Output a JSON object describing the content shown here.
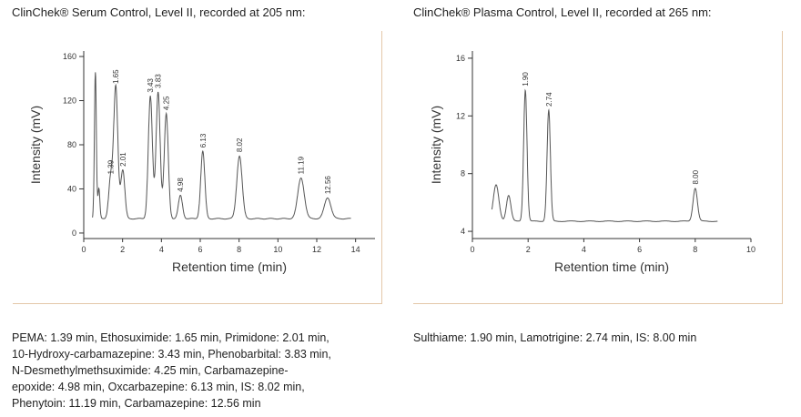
{
  "panels": [
    {
      "title": "ClinChek® Serum Control, Level II, recorded at 205 nm:",
      "caption_lines": [
        "PEMA: 1.39 min, Ethosuximide: 1.65 min, Primidone: 2.01 min,",
        "10-Hydroxy-carbamazepine: 3.43 min, Phenobarbital: 3.83 min,",
        "N-Desmethylmethsuximide: 4.25 min, Carbamazepine-",
        "epoxide: 4.98 min, Oxcarbazepine: 6.13 min, IS: 8.02 min,",
        "Phenytoin: 11.19 min, Carbamazepine: 12.56 min"
      ]
    },
    {
      "title": "ClinChek® Plasma Control, Level II, recorded at 265 nm:",
      "caption_lines": [
        "Sulthiame: 1.90 min, Lamotrigine: 2.74 min, IS: 8.00 min"
      ]
    }
  ],
  "chart_data": [
    {
      "type": "line",
      "xlabel": "Retention time (min)",
      "ylabel": "Intensity (mV)",
      "xlim": [
        0,
        15
      ],
      "ylim": [
        -5,
        165
      ],
      "xticks": [
        0,
        2,
        4,
        6,
        8,
        10,
        12,
        14
      ],
      "yticks": [
        0,
        40,
        80,
        120,
        160
      ],
      "baseline": 13,
      "artifacts": [
        {
          "x": 0.6,
          "y": 146,
          "w": 0.05
        },
        {
          "x": 0.78,
          "y": 40,
          "w": 0.05
        }
      ],
      "peaks": [
        {
          "label": "1.39",
          "x": 1.39,
          "y": 50
        },
        {
          "label": "1.65",
          "x": 1.65,
          "y": 132
        },
        {
          "label": "2.01",
          "x": 2.01,
          "y": 57
        },
        {
          "label": "3.43",
          "x": 3.43,
          "y": 124
        },
        {
          "label": "3.83",
          "x": 3.83,
          "y": 128
        },
        {
          "label": "4.25",
          "x": 4.25,
          "y": 108
        },
        {
          "label": "4.98",
          "x": 4.98,
          "y": 34
        },
        {
          "label": "6.13",
          "x": 6.13,
          "y": 74
        },
        {
          "label": "8.02",
          "x": 8.02,
          "y": 70
        },
        {
          "label": "11.19",
          "x": 11.19,
          "y": 50
        },
        {
          "label": "12.56",
          "x": 12.56,
          "y": 32
        }
      ]
    },
    {
      "type": "line",
      "xlabel": "Retention time (min)",
      "ylabel": "Intensity (mV)",
      "xlim": [
        0,
        10
      ],
      "ylim": [
        3.5,
        16.5
      ],
      "xticks": [
        0,
        2,
        4,
        6,
        8,
        10
      ],
      "yticks": [
        4,
        8,
        12,
        16
      ],
      "baseline": 4.7,
      "artifacts": [
        {
          "x": 0.85,
          "y": 7.2,
          "w": 0.1
        },
        {
          "x": 1.3,
          "y": 6.5,
          "w": 0.08
        }
      ],
      "peaks": [
        {
          "label": "1.90",
          "x": 1.9,
          "y": 13.8
        },
        {
          "label": "2.74",
          "x": 2.74,
          "y": 12.4
        },
        {
          "label": "8.00",
          "x": 8.0,
          "y": 7.0
        }
      ]
    }
  ]
}
